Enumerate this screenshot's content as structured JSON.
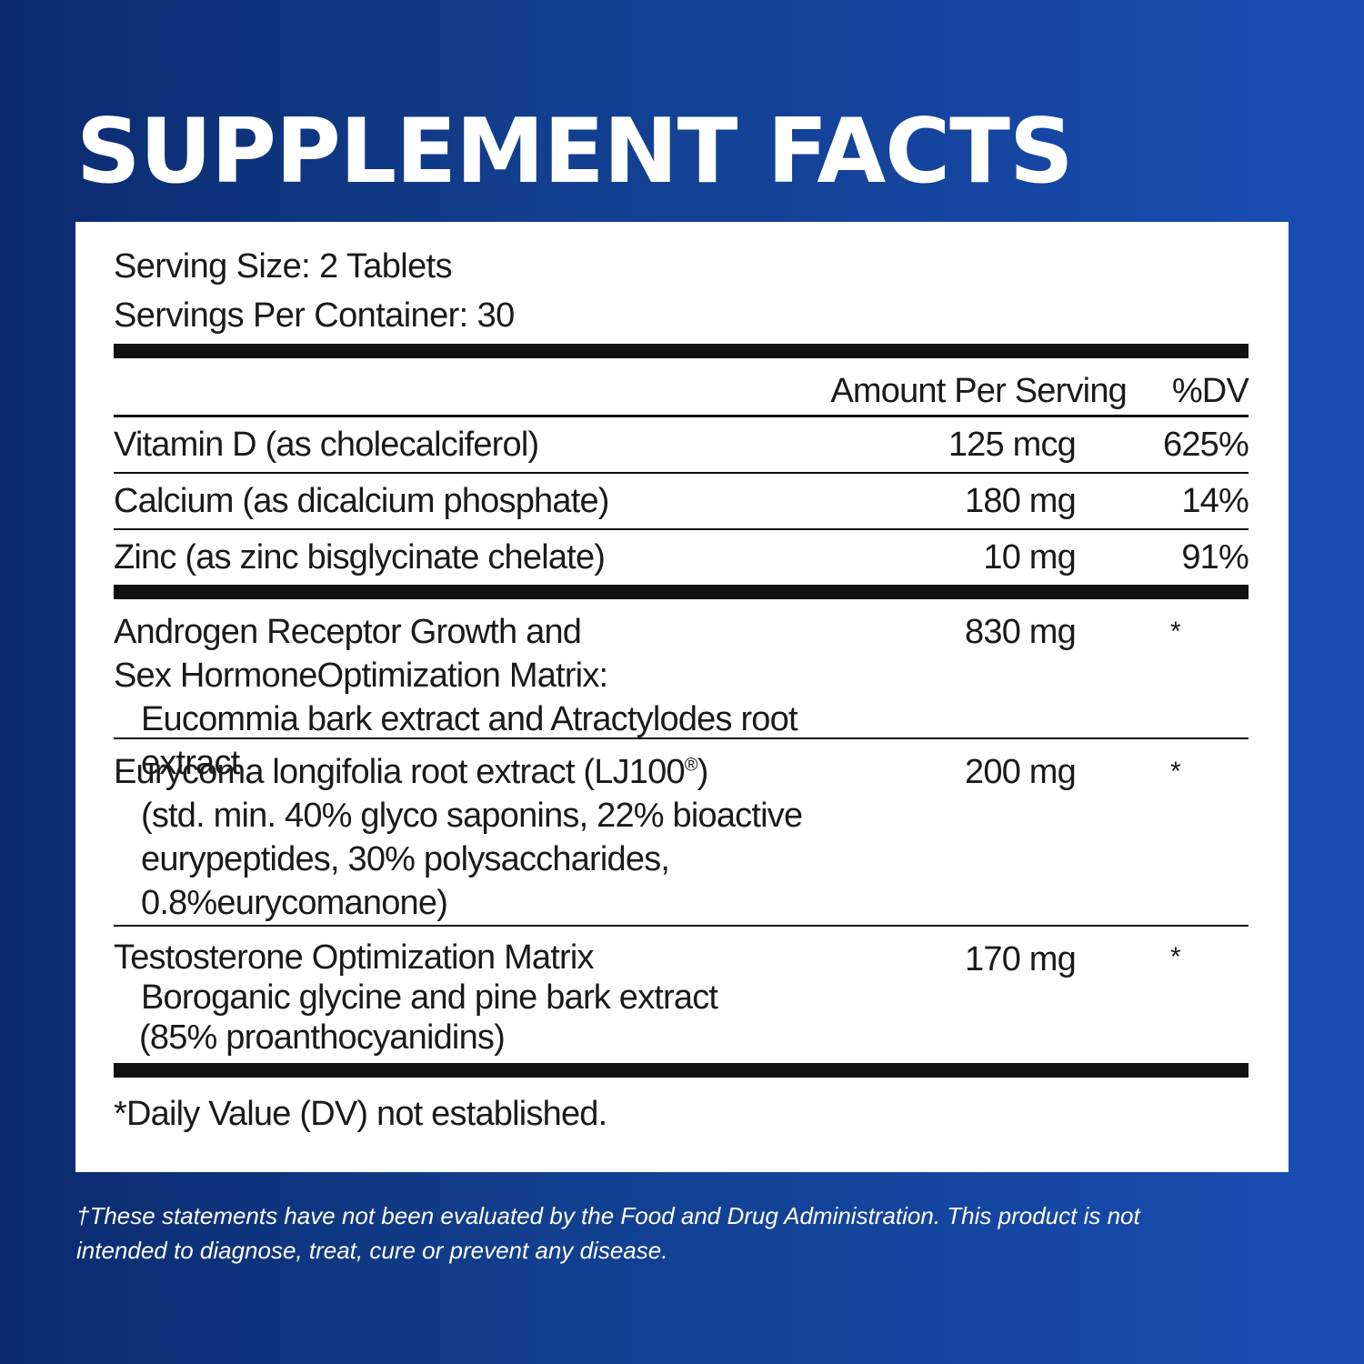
{
  "headline": "SUPPLEMENT FACTS",
  "serving_size": "Serving Size: 2 Tablets",
  "servings_per_container": "Servings Per Container: 30",
  "columns": {
    "amount": "Amount Per Serving",
    "dv": "%DV"
  },
  "nutrients": [
    {
      "name": "Vitamin D (as cholecalciferol)",
      "amount": "125 mcg",
      "dv": "625%"
    },
    {
      "name": "Calcium (as dicalcium phosphate)",
      "amount": "180 mg",
      "dv": "14%"
    },
    {
      "name": "Zinc (as zinc bisglycinate chelate)",
      "amount": "10 mg",
      "dv": "91%"
    }
  ],
  "blends": [
    {
      "lines": [
        "Androgen Receptor Growth and",
        "Sex HormoneOptimization Matrix:"
      ],
      "sub_lines": [
        "Eucommia bark extract and Atractylodes root extract"
      ],
      "amount": "830 mg",
      "dv": "*"
    },
    {
      "lines": [
        "Eurycoma longifolia root extract (LJ100",
        "®",
        ")"
      ],
      "sub_lines": [
        "(std. min. 40% glyco saponins, 22% bioactive",
        "eurypeptides, 30% polysaccharides,",
        "0.8%eurycomanone)"
      ],
      "amount": "200 mg",
      "dv": "*"
    },
    {
      "lines": [
        "Testosterone Optimization Matrix"
      ],
      "sub_lines": [
        "Boroganic glycine and pine bark extract",
        "(85% proanthocyanidins)"
      ],
      "amount": "170 mg",
      "dv": "*"
    }
  ],
  "footnote": "*Daily Value (DV) not established.",
  "disclaimer_line1": "†These statements have not been evaluated by the Food and Drug Administration. This product is not",
  "disclaimer_line2": "intended to diagnose, treat, cure or prevent any disease."
}
